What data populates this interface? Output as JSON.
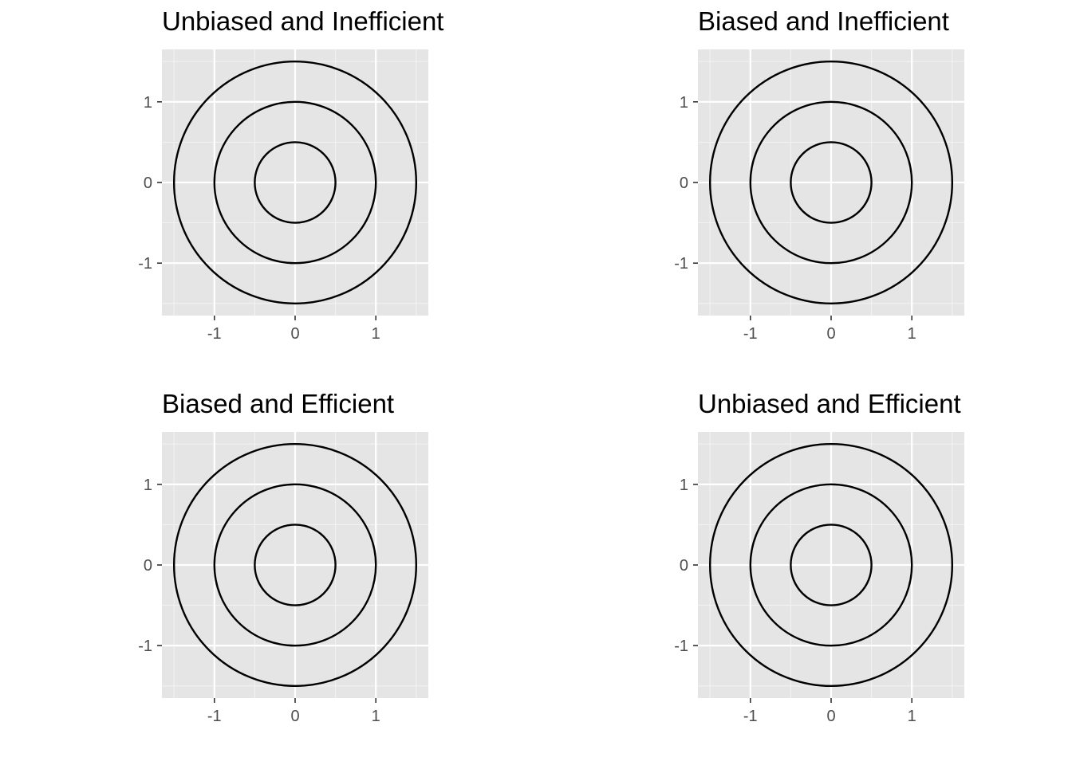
{
  "colors": {
    "panel_background": "#E5E5E5",
    "grid_major": "#FFFFFF",
    "grid_minor": "#F2F2F2",
    "circle_stroke": "#000000",
    "tick_color": "#333333",
    "tick_label_color": "#4D4D4D",
    "title_color": "#000000"
  },
  "chart_data": [
    {
      "type": "line",
      "title": "Unbiased and Inefficient",
      "xlabel": "",
      "ylabel": "",
      "xlim": [
        -1.65,
        1.65
      ],
      "ylim": [
        -1.65,
        1.65
      ],
      "x_ticks": [
        "-1",
        "0",
        "1"
      ],
      "y_ticks": [
        "-1",
        "0",
        "1"
      ],
      "grid": true,
      "series": [
        {
          "shape": "circle",
          "center": [
            0,
            0
          ],
          "radius": 0.5
        },
        {
          "shape": "circle",
          "center": [
            0,
            0
          ],
          "radius": 1.0
        },
        {
          "shape": "circle",
          "center": [
            0,
            0
          ],
          "radius": 1.5
        }
      ]
    },
    {
      "type": "line",
      "title": "Biased and Inefficient",
      "xlabel": "",
      "ylabel": "",
      "xlim": [
        -1.65,
        1.65
      ],
      "ylim": [
        -1.65,
        1.65
      ],
      "x_ticks": [
        "-1",
        "0",
        "1"
      ],
      "y_ticks": [
        "-1",
        "0",
        "1"
      ],
      "grid": true,
      "series": [
        {
          "shape": "circle",
          "center": [
            0,
            0
          ],
          "radius": 0.5
        },
        {
          "shape": "circle",
          "center": [
            0,
            0
          ],
          "radius": 1.0
        },
        {
          "shape": "circle",
          "center": [
            0,
            0
          ],
          "radius": 1.5
        }
      ]
    },
    {
      "type": "line",
      "title": "Biased and Efficient",
      "xlabel": "",
      "ylabel": "",
      "xlim": [
        -1.65,
        1.65
      ],
      "ylim": [
        -1.65,
        1.65
      ],
      "x_ticks": [
        "-1",
        "0",
        "1"
      ],
      "y_ticks": [
        "-1",
        "0",
        "1"
      ],
      "grid": true,
      "series": [
        {
          "shape": "circle",
          "center": [
            0,
            0
          ],
          "radius": 0.5
        },
        {
          "shape": "circle",
          "center": [
            0,
            0
          ],
          "radius": 1.0
        },
        {
          "shape": "circle",
          "center": [
            0,
            0
          ],
          "radius": 1.5
        }
      ]
    },
    {
      "type": "line",
      "title": "Unbiased and Efficient",
      "xlabel": "",
      "ylabel": "",
      "xlim": [
        -1.65,
        1.65
      ],
      "ylim": [
        -1.65,
        1.65
      ],
      "x_ticks": [
        "-1",
        "0",
        "1"
      ],
      "y_ticks": [
        "-1",
        "0",
        "1"
      ],
      "grid": true,
      "series": [
        {
          "shape": "circle",
          "center": [
            0,
            0
          ],
          "radius": 0.5
        },
        {
          "shape": "circle",
          "center": [
            0,
            0
          ],
          "radius": 1.0
        },
        {
          "shape": "circle",
          "center": [
            0,
            0
          ],
          "radius": 1.5
        }
      ]
    }
  ]
}
